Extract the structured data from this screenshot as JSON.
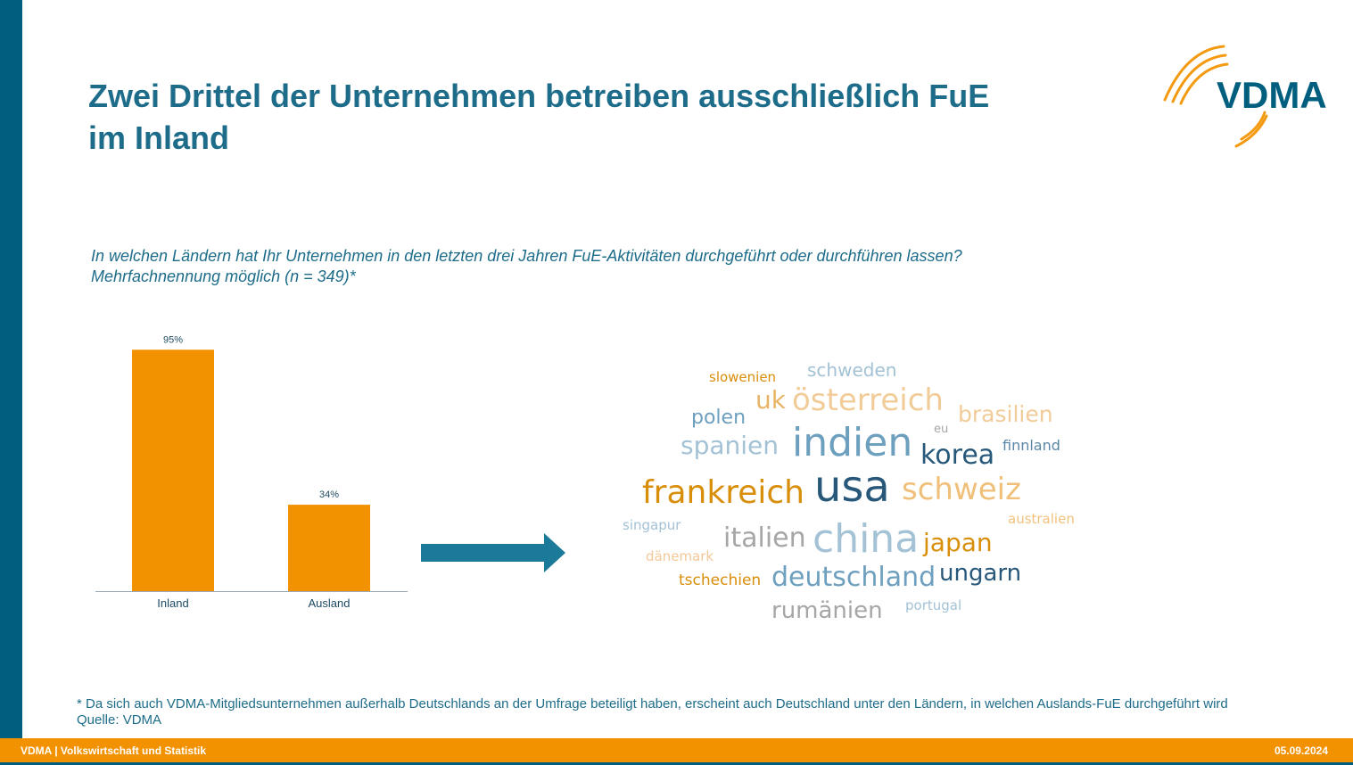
{
  "title_line1": "Zwei Drittel der Unternehmen betreiben ausschließlich FuE",
  "title_line2": "im Inland",
  "logo_text": "VDMA",
  "question": "In welchen Ländern hat Ihr Unternehmen in den letzten drei Jahren FuE-Aktivitäten durchgeführt oder durchführen lassen?",
  "question_note": "Mehrfachnennung möglich (n = 349)*",
  "chart_data": {
    "type": "bar",
    "categories": [
      "Inland",
      "Ausland"
    ],
    "values": [
      95,
      34
    ],
    "value_labels": [
      "95%",
      "34%"
    ],
    "ylim": [
      0,
      100
    ],
    "bar_color": "#f39200",
    "grid": false,
    "legend": "none"
  },
  "wordcloud": [
    {
      "word": "slowenien",
      "color": "#d98e0a"
    },
    {
      "word": "schweden",
      "color": "#a3c2d5"
    },
    {
      "word": "uk",
      "color": "#e8b466"
    },
    {
      "word": "österreich",
      "color": "#f2cc98"
    },
    {
      "word": "polen",
      "color": "#6d9fbe"
    },
    {
      "word": "brasilien",
      "color": "#f2cc98"
    },
    {
      "word": "eu",
      "color": "#a6a6a6"
    },
    {
      "word": "spanien",
      "color": "#a3c2d5"
    },
    {
      "word": "indien",
      "color": "#6d9fbe"
    },
    {
      "word": "korea",
      "color": "#27587a"
    },
    {
      "word": "finnland",
      "color": "#5b87a6"
    },
    {
      "word": "frankreich",
      "color": "#d98e0a"
    },
    {
      "word": "usa",
      "color": "#27587a"
    },
    {
      "word": "schweiz",
      "color": "#f0c07a"
    },
    {
      "word": "singapur",
      "color": "#a3c2d5"
    },
    {
      "word": "australien",
      "color": "#f2c27c"
    },
    {
      "word": "italien",
      "color": "#a6a6a6"
    },
    {
      "word": "china",
      "color": "#a3c2d5"
    },
    {
      "word": "japan",
      "color": "#d98e0a"
    },
    {
      "word": "dänemark",
      "color": "#f2c898"
    },
    {
      "word": "tschechien",
      "color": "#d98e0a"
    },
    {
      "word": "deutschland",
      "color": "#6d9fbe"
    },
    {
      "word": "ungarn",
      "color": "#27587a"
    },
    {
      "word": "rumänien",
      "color": "#a6a6a6"
    },
    {
      "word": "portugal",
      "color": "#a3c2d5"
    }
  ],
  "footnote": "* Da sich auch VDMA-Mitgliedsunternehmen außerhalb Deutschlands an der Umfrage beteiligt haben, erscheint auch Deutschland unter den Ländern, in welchen Auslands-FuE durchgeführt wird",
  "source": "Quelle: VDMA",
  "footer_left": "VDMA | Volkswirtschaft und Statistik",
  "footer_right": "05.09.2024",
  "colors": {
    "brand_blue": "#005f7e",
    "title_blue": "#1d6c8a",
    "accent_orange": "#f39200",
    "arrow_blue": "#1b7a9a"
  }
}
